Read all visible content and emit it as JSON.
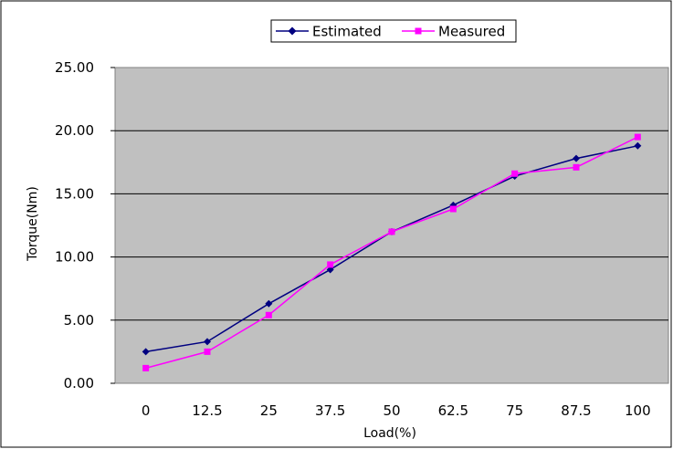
{
  "chart_data": {
    "type": "line",
    "title": "",
    "xlabel": "Load(%)",
    "ylabel": "Torque(Nm)",
    "categories": [
      "0",
      "12.5",
      "25",
      "37.5",
      "50",
      "62.5",
      "75",
      "87.5",
      "100"
    ],
    "ylim": [
      0,
      25
    ],
    "yticks": [
      "0.00",
      "5.00",
      "10.00",
      "15.00",
      "20.00",
      "25.00"
    ],
    "grid": true,
    "legend_position": "top",
    "plot_background": "#c0c0c0",
    "series": [
      {
        "name": "Estimated",
        "color": "#000080",
        "marker": "diamond",
        "values": [
          2.5,
          3.3,
          6.3,
          9.0,
          12.0,
          14.1,
          16.4,
          17.8,
          18.8
        ]
      },
      {
        "name": "Measured",
        "color": "#ff00ff",
        "marker": "square",
        "values": [
          1.2,
          2.5,
          5.4,
          9.4,
          12.0,
          13.8,
          16.6,
          17.1,
          19.5
        ]
      }
    ]
  }
}
